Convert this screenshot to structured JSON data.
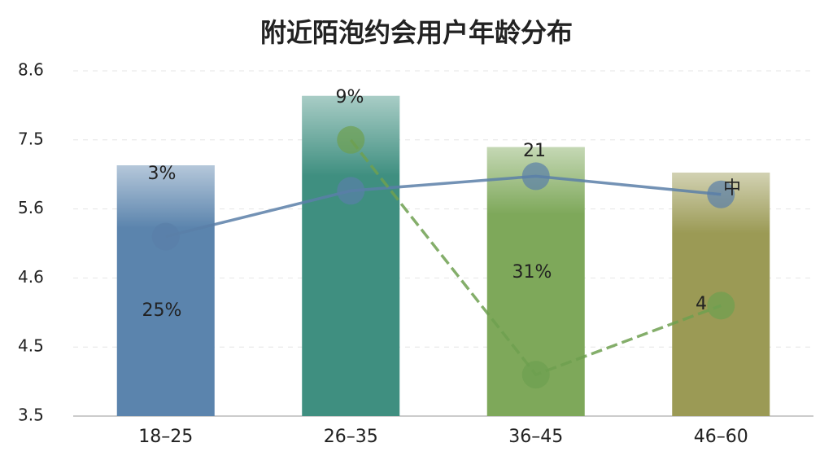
{
  "chart_data": {
    "type": "bar",
    "title": "附近陌泡约会用户年龄分布",
    "categories": [
      "18–25",
      "26–35",
      "36–45",
      "46–60"
    ],
    "values": [
      6.8,
      8.2,
      7.3,
      6.6
    ],
    "colors": [
      "#5b84ad",
      "#3f8f80",
      "#7ea85a",
      "#9b9a55"
    ],
    "ylim": [
      3.5,
      8.6
    ],
    "yticks": [
      8.6,
      7.5,
      5.6,
      4.6,
      4.5,
      3.5
    ],
    "grid": true,
    "series": [
      {
        "type": "line",
        "color": "#5a7fa8",
        "values": [
          5.2,
          6.1,
          6.5,
          6.0
        ]
      },
      {
        "type": "line",
        "color": "#6ea050",
        "values": [
          null,
          7.5,
          4.1,
          4.56
        ]
      }
    ],
    "annotations": [
      "3%",
      "9%",
      "21",
      "中",
      "25%",
      "31%",
      "4"
    ]
  }
}
